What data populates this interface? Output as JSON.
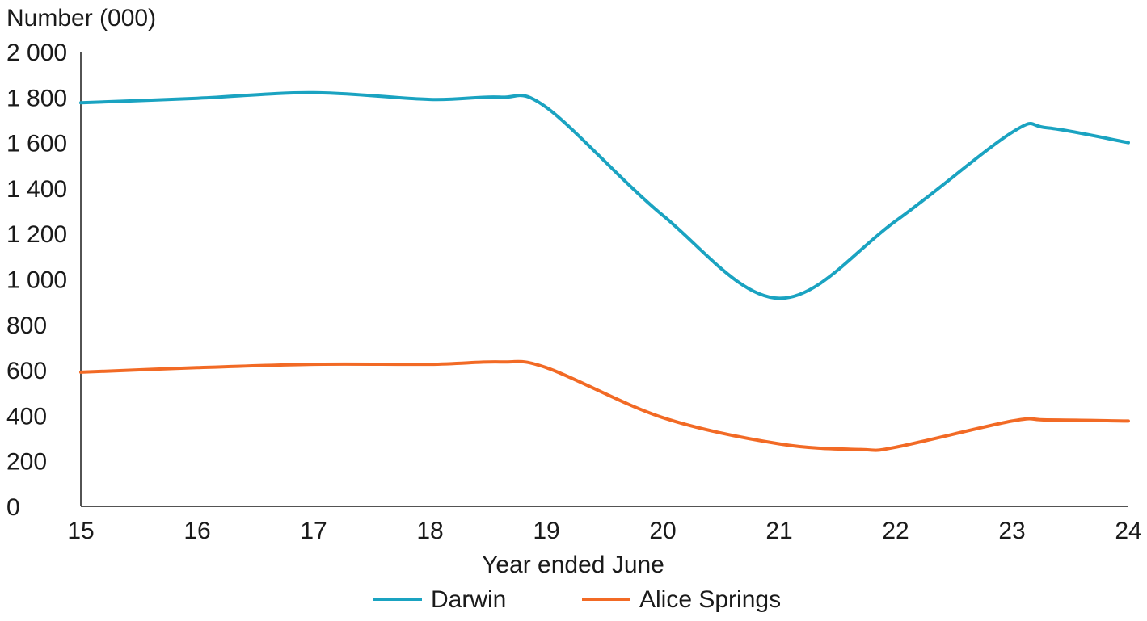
{
  "chart_data": {
    "type": "line",
    "ylabel": "Number (000)",
    "xlabel": "Year ended June",
    "x": [
      15,
      16,
      17,
      18,
      19,
      20,
      21,
      22,
      23,
      24
    ],
    "x_tick_labels": [
      "15",
      "16",
      "17",
      "18",
      "19",
      "20",
      "21",
      "22",
      "23",
      "24"
    ],
    "ylim": [
      0,
      2000
    ],
    "y_ticks": [
      0,
      200,
      400,
      600,
      800,
      1000,
      1200,
      1400,
      1600,
      1800,
      2000
    ],
    "y_tick_labels": [
      "0",
      "200",
      "400",
      "600",
      "800",
      "1 000",
      "1 200",
      "1 400",
      "1 600",
      "1 800",
      "2 000"
    ],
    "grid": false,
    "legend_position": "bottom",
    "series": [
      {
        "name": "Darwin",
        "color": "#1aa3c1",
        "x": [
          15,
          16,
          17,
          18,
          18.6,
          19,
          20,
          21,
          22,
          23,
          23.3,
          24
        ],
        "values": [
          1775,
          1795,
          1820,
          1790,
          1800,
          1755,
          1280,
          915,
          1255,
          1645,
          1665,
          1600
        ]
      },
      {
        "name": "Alice Springs",
        "color": "#f26a25",
        "x": [
          15,
          16,
          17,
          18,
          18.6,
          19,
          20,
          21,
          21.7,
          22,
          23,
          23.3,
          24
        ],
        "values": [
          590,
          610,
          625,
          625,
          635,
          610,
          390,
          275,
          250,
          260,
          375,
          380,
          375
        ]
      }
    ]
  }
}
